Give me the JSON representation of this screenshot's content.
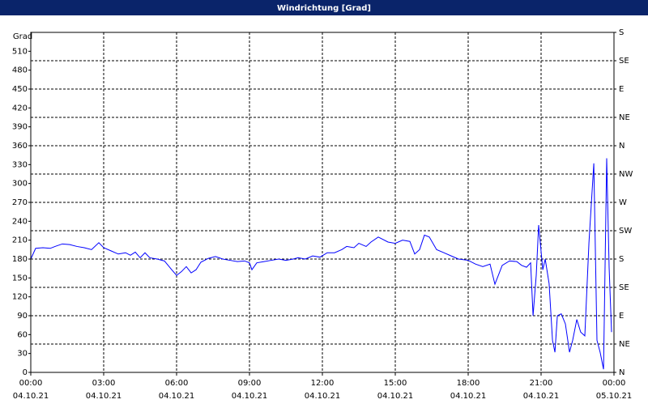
{
  "chart_data": {
    "type": "line",
    "title": "Windrichtung [Grad]",
    "y_label": "Grad",
    "xlim": [
      0,
      24
    ],
    "xticks": [
      {
        "value": 0,
        "label": "00:00"
      },
      {
        "value": 3,
        "label": "03:00"
      },
      {
        "value": 6,
        "label": "06:00"
      },
      {
        "value": 9,
        "label": "09:00"
      },
      {
        "value": 12,
        "label": "12:00"
      },
      {
        "value": 15,
        "label": "15:00"
      },
      {
        "value": 18,
        "label": "18:00"
      },
      {
        "value": 21,
        "label": "21:00"
      },
      {
        "value": 24,
        "label": "00:00"
      }
    ],
    "xtick_dates": [
      "04.10.21",
      "04.10.21",
      "04.10.21",
      "04.10.21",
      "04.10.21",
      "04.10.21",
      "04.10.21",
      "04.10.21",
      "05.10.21"
    ],
    "ylim": [
      0,
      540
    ],
    "yticks": [
      0,
      30,
      60,
      90,
      120,
      150,
      180,
      210,
      240,
      270,
      300,
      330,
      360,
      390,
      420,
      450,
      480,
      510
    ],
    "y2lim": [
      0,
      540
    ],
    "y2ticks": [
      {
        "value": 0,
        "label": "N"
      },
      {
        "value": 45,
        "label": "NE"
      },
      {
        "value": 90,
        "label": "E"
      },
      {
        "value": 135,
        "label": "SE"
      },
      {
        "value": 180,
        "label": "S"
      },
      {
        "value": 225,
        "label": "SW"
      },
      {
        "value": 270,
        "label": "W"
      },
      {
        "value": 315,
        "label": "NW"
      },
      {
        "value": 360,
        "label": "N"
      },
      {
        "value": 405,
        "label": "NE"
      },
      {
        "value": 450,
        "label": "E"
      },
      {
        "value": 495,
        "label": "SE"
      },
      {
        "value": 540,
        "label": "S"
      }
    ],
    "grid": true,
    "series": [
      {
        "color": "#0000ff",
        "x": [
          0,
          0.2,
          0.5,
          0.8,
          1.0,
          1.3,
          1.6,
          1.9,
          2.2,
          2.5,
          2.8,
          3.0,
          3.3,
          3.6,
          3.9,
          4.1,
          4.3,
          4.5,
          4.7,
          4.9,
          5.2,
          5.5,
          5.8,
          6.0,
          6.2,
          6.4,
          6.6,
          6.8,
          7.0,
          7.3,
          7.6,
          7.9,
          8.2,
          8.5,
          8.8,
          9.0,
          9.1,
          9.3,
          9.6,
          9.9,
          10.2,
          10.5,
          10.8,
          11.0,
          11.3,
          11.6,
          11.9,
          12.2,
          12.5,
          12.8,
          13.0,
          13.3,
          13.5,
          13.8,
          14.0,
          14.3,
          14.7,
          15.0,
          15.3,
          15.6,
          15.8,
          16.0,
          16.2,
          16.4,
          16.7,
          17.0,
          17.3,
          17.6,
          18.0,
          18.3,
          18.6,
          18.9,
          19.1,
          19.4,
          19.7,
          20.0,
          20.2,
          20.4,
          20.57,
          20.67,
          20.8,
          20.9,
          21.07,
          21.17,
          21.33,
          21.47,
          21.57,
          21.67,
          21.83,
          22.0,
          22.17,
          22.3,
          22.47,
          22.63,
          22.8,
          22.97,
          23.17,
          23.3,
          23.43,
          23.57,
          23.7,
          23.8,
          23.9
        ],
        "values": [
          180,
          197,
          198,
          197,
          200,
          204,
          203,
          200,
          198,
          195,
          206,
          198,
          193,
          188,
          190,
          186,
          191,
          182,
          190,
          182,
          180,
          177,
          163,
          154,
          160,
          168,
          158,
          163,
          175,
          181,
          184,
          180,
          178,
          176,
          177,
          174,
          163,
          174,
          176,
          178,
          180,
          178,
          180,
          182,
          180,
          185,
          183,
          190,
          190,
          195,
          200,
          198,
          205,
          200,
          207,
          215,
          207,
          205,
          210,
          208,
          188,
          195,
          218,
          215,
          195,
          190,
          185,
          180,
          178,
          172,
          168,
          172,
          140,
          170,
          177,
          176,
          170,
          167,
          174,
          90,
          154,
          234,
          163,
          180,
          141,
          51,
          32,
          90,
          93,
          77,
          32,
          51,
          84,
          64,
          58,
          206,
          332,
          51,
          32,
          5,
          340,
          167,
          64
        ]
      }
    ]
  }
}
